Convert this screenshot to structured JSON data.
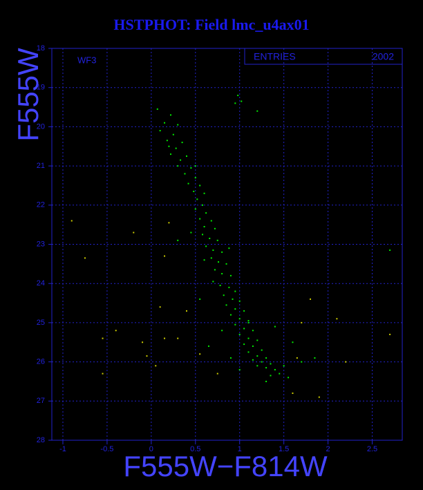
{
  "chart_data": {
    "type": "scatter",
    "title": "HSTPHOT: Field lmc_u4ax01",
    "annotation": "WF3",
    "stats_label": "ENTRIES",
    "stats_value": 2002,
    "xlabel": "F555W−F814W",
    "ylabel": "F555W",
    "xlim": [
      -1.125,
      2.84
    ],
    "ylim": [
      28,
      18
    ],
    "xticks": [
      -1,
      -0.5,
      0,
      0.5,
      1,
      1.5,
      2,
      2.5
    ],
    "yticks": [
      18,
      19,
      20,
      21,
      22,
      23,
      24,
      25,
      26,
      27,
      28
    ],
    "grid": true,
    "series": [
      {
        "color": "#00ee00",
        "x": [
          0.07,
          0.22,
          0.15,
          0.3,
          0.1,
          0.25,
          0.18,
          0.35,
          0.28,
          0.22,
          0.4,
          0.33,
          0.3,
          0.45,
          0.38,
          0.5,
          0.42,
          0.55,
          0.48,
          0.6,
          0.52,
          0.58,
          0.5,
          0.62,
          0.55,
          0.68,
          0.6,
          0.72,
          0.58,
          0.66,
          0.75,
          0.62,
          0.7,
          0.8,
          0.68,
          0.76,
          0.85,
          0.72,
          0.8,
          0.9,
          0.7,
          0.78,
          0.88,
          0.95,
          0.82,
          0.92,
          1.0,
          0.85,
          0.95,
          1.05,
          0.9,
          1.0,
          1.1,
          0.95,
          1.05,
          1.15,
          1.0,
          1.1,
          1.2,
          1.05,
          1.15,
          1.25,
          1.1,
          1.2,
          1.3,
          1.15,
          1.25,
          1.35,
          1.2,
          1.3,
          1.4,
          1.45,
          1.35,
          1.5,
          0.98,
          1.02,
          1.2,
          0.95,
          2.7,
          0.6,
          0.55,
          0.8,
          0.65,
          1.4,
          1.6,
          1.7,
          1.85,
          0.45,
          0.3,
          1.1,
          0.88,
          0.5,
          0.2,
          1.0,
          0.9,
          1.55,
          1.3
        ],
        "values": [
          19.55,
          19.7,
          19.9,
          19.95,
          20.1,
          20.2,
          20.35,
          20.4,
          20.55,
          20.7,
          20.75,
          20.85,
          21.0,
          21.05,
          21.2,
          21.3,
          21.45,
          21.5,
          21.65,
          21.7,
          21.85,
          22.0,
          22.1,
          22.2,
          22.35,
          22.4,
          22.55,
          22.6,
          22.75,
          22.85,
          22.9,
          23.05,
          23.15,
          23.2,
          23.35,
          23.45,
          23.5,
          23.65,
          23.75,
          23.8,
          23.95,
          24.05,
          24.1,
          24.2,
          24.3,
          24.4,
          24.45,
          24.55,
          24.65,
          24.7,
          24.8,
          24.9,
          24.95,
          25.05,
          25.15,
          25.2,
          25.3,
          25.4,
          25.45,
          25.55,
          25.6,
          25.7,
          25.75,
          25.85,
          25.9,
          25.95,
          26.0,
          26.05,
          26.1,
          26.15,
          26.2,
          26.3,
          26.35,
          26.1,
          19.2,
          19.35,
          19.6,
          19.4,
          23.15,
          23.4,
          24.4,
          25.2,
          25.6,
          25.1,
          25.5,
          26.0,
          25.9,
          22.7,
          22.9,
          25.0,
          23.1,
          21.0,
          20.5,
          26.2,
          25.9,
          26.4,
          26.5
        ]
      },
      {
        "color": "#cccc00",
        "x": [
          -0.9,
          -0.75,
          -0.2,
          0.2,
          0.15,
          0.1,
          0.4,
          -0.4,
          -0.55,
          -0.1,
          0.3,
          0.15,
          -0.05,
          -0.55,
          0.05,
          1.65,
          1.7,
          2.1,
          1.6,
          1.9,
          2.2,
          2.7,
          1.8,
          0.75,
          0.55
        ],
        "values": [
          22.4,
          23.35,
          22.7,
          22.45,
          23.3,
          24.6,
          24.7,
          25.2,
          25.4,
          25.5,
          25.4,
          25.4,
          25.85,
          26.3,
          26.1,
          25.9,
          25.0,
          24.9,
          26.8,
          26.9,
          26.0,
          25.3,
          24.4,
          26.3,
          25.8
        ]
      }
    ]
  }
}
